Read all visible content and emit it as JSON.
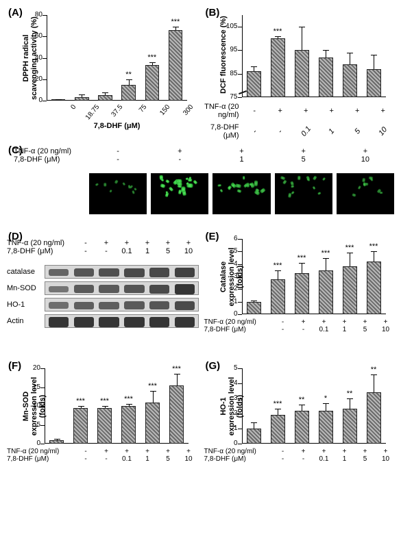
{
  "colors": {
    "background": "#ffffff",
    "bar_fill_pattern": "#6a6a6a/#b8b8b8 45deg hatch",
    "bar_border": "#222222",
    "axis": "#000000",
    "blot_bg": "#bdbdbd",
    "blot_band": "#2b2b2b",
    "micro_bg": "#000000",
    "micro_fluor": "#2fbf3a"
  },
  "panel_labels": [
    "(A)",
    "(B)",
    "(C)",
    "(D)",
    "(E)",
    "(F)",
    "(G)"
  ],
  "panelA": {
    "type": "bar",
    "ylabel": "DPPH radical\nscavenging activity (%)",
    "xlabel": "7,8-DHF (μM)",
    "ylim": [
      0,
      80
    ],
    "ytick_step": 20,
    "categories": [
      "0",
      "18.75",
      "37.5",
      "75",
      "150",
      "300"
    ],
    "values": [
      0.5,
      3,
      5,
      15,
      33,
      66
    ],
    "errors": [
      0.5,
      3,
      3,
      5,
      3,
      3
    ],
    "sig": [
      "",
      "",
      "",
      "**",
      "***",
      "***"
    ],
    "bar_width": 0.6
  },
  "panelB": {
    "type": "bar",
    "ylabel": "DCF fluorescence (%)",
    "ylim": [
      75,
      110
    ],
    "ytick_step": 10,
    "axis_break": true,
    "tnf_row_label": "TNF-α (20 ng/ml)",
    "dhf_row_label": "7,8-DHF (μM)",
    "tnf": [
      "-",
      "+",
      "+",
      "+",
      "+",
      "+"
    ],
    "dhf": [
      "-",
      "-",
      "0.1",
      "1",
      "5",
      "10"
    ],
    "values": [
      86,
      100,
      95,
      92,
      89,
      87
    ],
    "errors": [
      2,
      1,
      10,
      3,
      5,
      6
    ],
    "sig": [
      "",
      "***",
      "",
      "",
      "",
      ""
    ]
  },
  "panelC": {
    "tnf_row_label": "TNF-α (20 ng/ml)",
    "dhf_row_label": "7,8-DHF (μM)",
    "tnf": [
      "-",
      "+",
      "+",
      "+",
      "+"
    ],
    "dhf": [
      "-",
      "-",
      "1",
      "5",
      "10"
    ],
    "fluor_intensity_rel": [
      0.3,
      1.0,
      0.7,
      0.5,
      0.35
    ]
  },
  "panelD": {
    "tnf_row_label": "TNF-α (20 ng/ml)",
    "dhf_row_label": "7,8-DHF (μM)",
    "tnf": [
      "-",
      "+",
      "+",
      "+",
      "+",
      "+"
    ],
    "dhf": [
      "-",
      "-",
      "0.1",
      "1",
      "5",
      "10"
    ],
    "proteins": [
      "catalase",
      "Mn-SOD",
      "HO-1",
      "Actin"
    ],
    "band_intensity": {
      "catalase": [
        0.45,
        0.6,
        0.65,
        0.7,
        0.72,
        0.8
      ],
      "Mn-SOD": [
        0.3,
        0.55,
        0.55,
        0.6,
        0.7,
        0.9
      ],
      "HO-1": [
        0.35,
        0.5,
        0.5,
        0.55,
        0.6,
        0.7
      ],
      "Actin": [
        0.9,
        0.9,
        0.9,
        0.9,
        0.9,
        0.9
      ]
    }
  },
  "panelE": {
    "type": "bar",
    "ylabel": "Catalase\nexpression level (folds)",
    "ylim": [
      0,
      6
    ],
    "ytick_step": 1,
    "tnf_row_label": "TNF-α (20 ng/ml)",
    "dhf_row_label": "7,8-DHF (μM)",
    "tnf": [
      "-",
      "+",
      "+",
      "+",
      "+",
      "+"
    ],
    "dhf": [
      "-",
      "-",
      "0.1",
      "1",
      "5",
      "10"
    ],
    "values": [
      1.0,
      2.8,
      3.3,
      3.5,
      3.8,
      4.2
    ],
    "errors": [
      0.1,
      0.7,
      0.8,
      1.0,
      1.1,
      0.8
    ],
    "sig": [
      "",
      "***",
      "***",
      "***",
      "***",
      "***"
    ]
  },
  "panelF": {
    "type": "bar",
    "ylabel": "Mn-SOD\nexpression level (folds)",
    "ylim": [
      0,
      20
    ],
    "ytick_step": 5,
    "tnf_row_label": "TNF-α (20 ng/ml)",
    "dhf_row_label": "7,8-DHF (μM)",
    "tnf": [
      "-",
      "+",
      "+",
      "+",
      "+",
      "+"
    ],
    "dhf": [
      "-",
      "-",
      "0.1",
      "1",
      "5",
      "10"
    ],
    "values": [
      1.0,
      9.5,
      9.5,
      10.0,
      11.0,
      15.5
    ],
    "errors": [
      0.2,
      0.5,
      0.5,
      0.5,
      3.0,
      3.0
    ],
    "sig": [
      "",
      "***",
      "***",
      "***",
      "***",
      "***"
    ]
  },
  "panelG": {
    "type": "bar",
    "ylabel": "HO-1\nexpression level (folds)",
    "ylim": [
      0,
      5
    ],
    "ytick_step": 1,
    "tnf_row_label": "TNF-α (20 ng/ml)",
    "dhf_row_label": "7,8-DHF (μM)",
    "tnf": [
      "-",
      "+",
      "+",
      "+",
      "+",
      "+"
    ],
    "dhf": [
      "-",
      "-",
      "0.1",
      "1",
      "5",
      "10"
    ],
    "values": [
      1.0,
      1.9,
      2.2,
      2.2,
      2.3,
      3.4
    ],
    "errors": [
      0.4,
      0.4,
      0.4,
      0.5,
      0.7,
      1.2
    ],
    "sig": [
      "",
      "***",
      "**",
      "*",
      "**",
      "**"
    ]
  }
}
